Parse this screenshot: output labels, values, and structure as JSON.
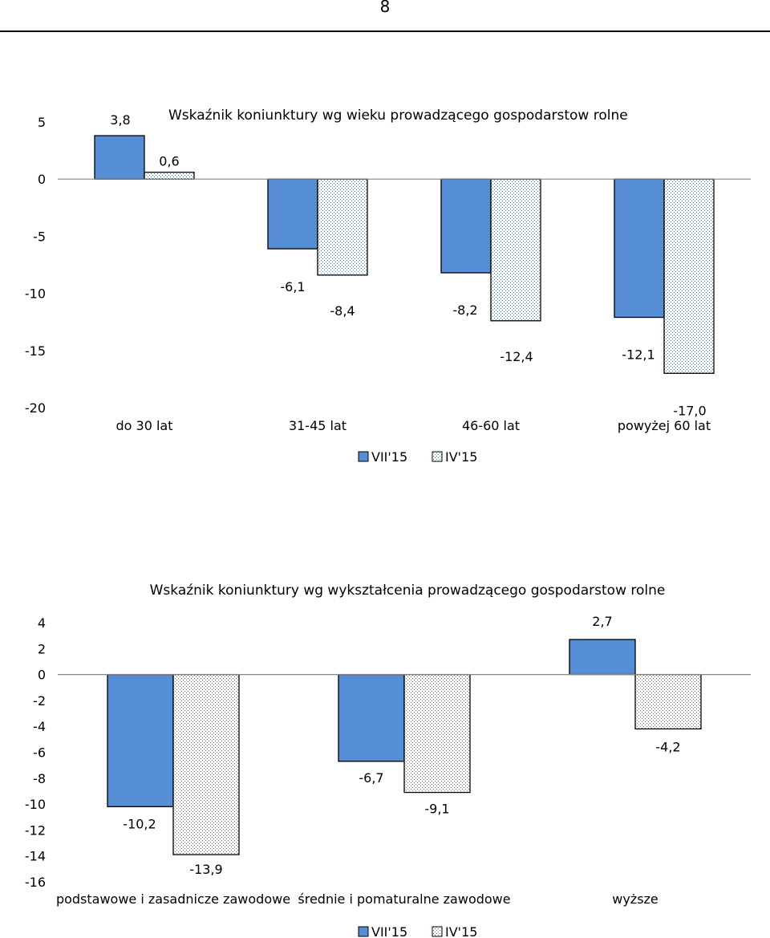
{
  "page": {
    "number": "8"
  },
  "colors": {
    "series1": "#558ed5",
    "series2_bg": "#ffffff",
    "series2_dot": "#4a7a8c",
    "axis": "#868686",
    "border": "#000000"
  },
  "chart_data": [
    {
      "type": "bar",
      "title": "Wskaźnik koniunktury wg wieku prowadzącego gospodarstow rolne",
      "categories": [
        "do 30 lat",
        "31-45 lat",
        "46-60 lat",
        "powyżej 60 lat"
      ],
      "series": [
        {
          "name": "VII'15",
          "values": [
            3.8,
            -6.1,
            -8.2,
            -12.1
          ],
          "labels": [
            "3,8",
            "-6,1",
            "-8,2",
            "-12,1"
          ]
        },
        {
          "name": "IV'15",
          "values": [
            0.6,
            -8.4,
            -12.4,
            -17.0
          ],
          "labels": [
            "0,6",
            "-8,4",
            "-12,4",
            "-17,0"
          ]
        }
      ],
      "yticks": [
        5,
        0,
        -5,
        -10,
        -15,
        -20
      ],
      "ylim": [
        -20,
        5
      ],
      "xlabel": "",
      "ylabel": "",
      "legend": "bottom"
    },
    {
      "type": "bar",
      "title": "Wskaźnik koniunktury wg wykształcenia prowadzącego gospodarstow rolne",
      "categories": [
        "podstawowe i zasadnicze zawodowe",
        "średnie i pomaturalne zawodowe",
        "wyższe"
      ],
      "series": [
        {
          "name": "VII'15",
          "values": [
            -10.2,
            -6.7,
            2.7
          ],
          "labels": [
            "-10,2",
            "-6,7",
            "2,7"
          ]
        },
        {
          "name": "IV'15",
          "values": [
            -13.9,
            -9.1,
            -4.2
          ],
          "labels": [
            "-13,9",
            "-9,1",
            "-4,2"
          ]
        }
      ],
      "yticks": [
        4,
        2,
        0,
        -2,
        -4,
        -6,
        -8,
        -10,
        -12,
        -14,
        -16
      ],
      "ylim": [
        -16,
        4
      ],
      "xlabel": "",
      "ylabel": "",
      "legend": "bottom"
    }
  ]
}
